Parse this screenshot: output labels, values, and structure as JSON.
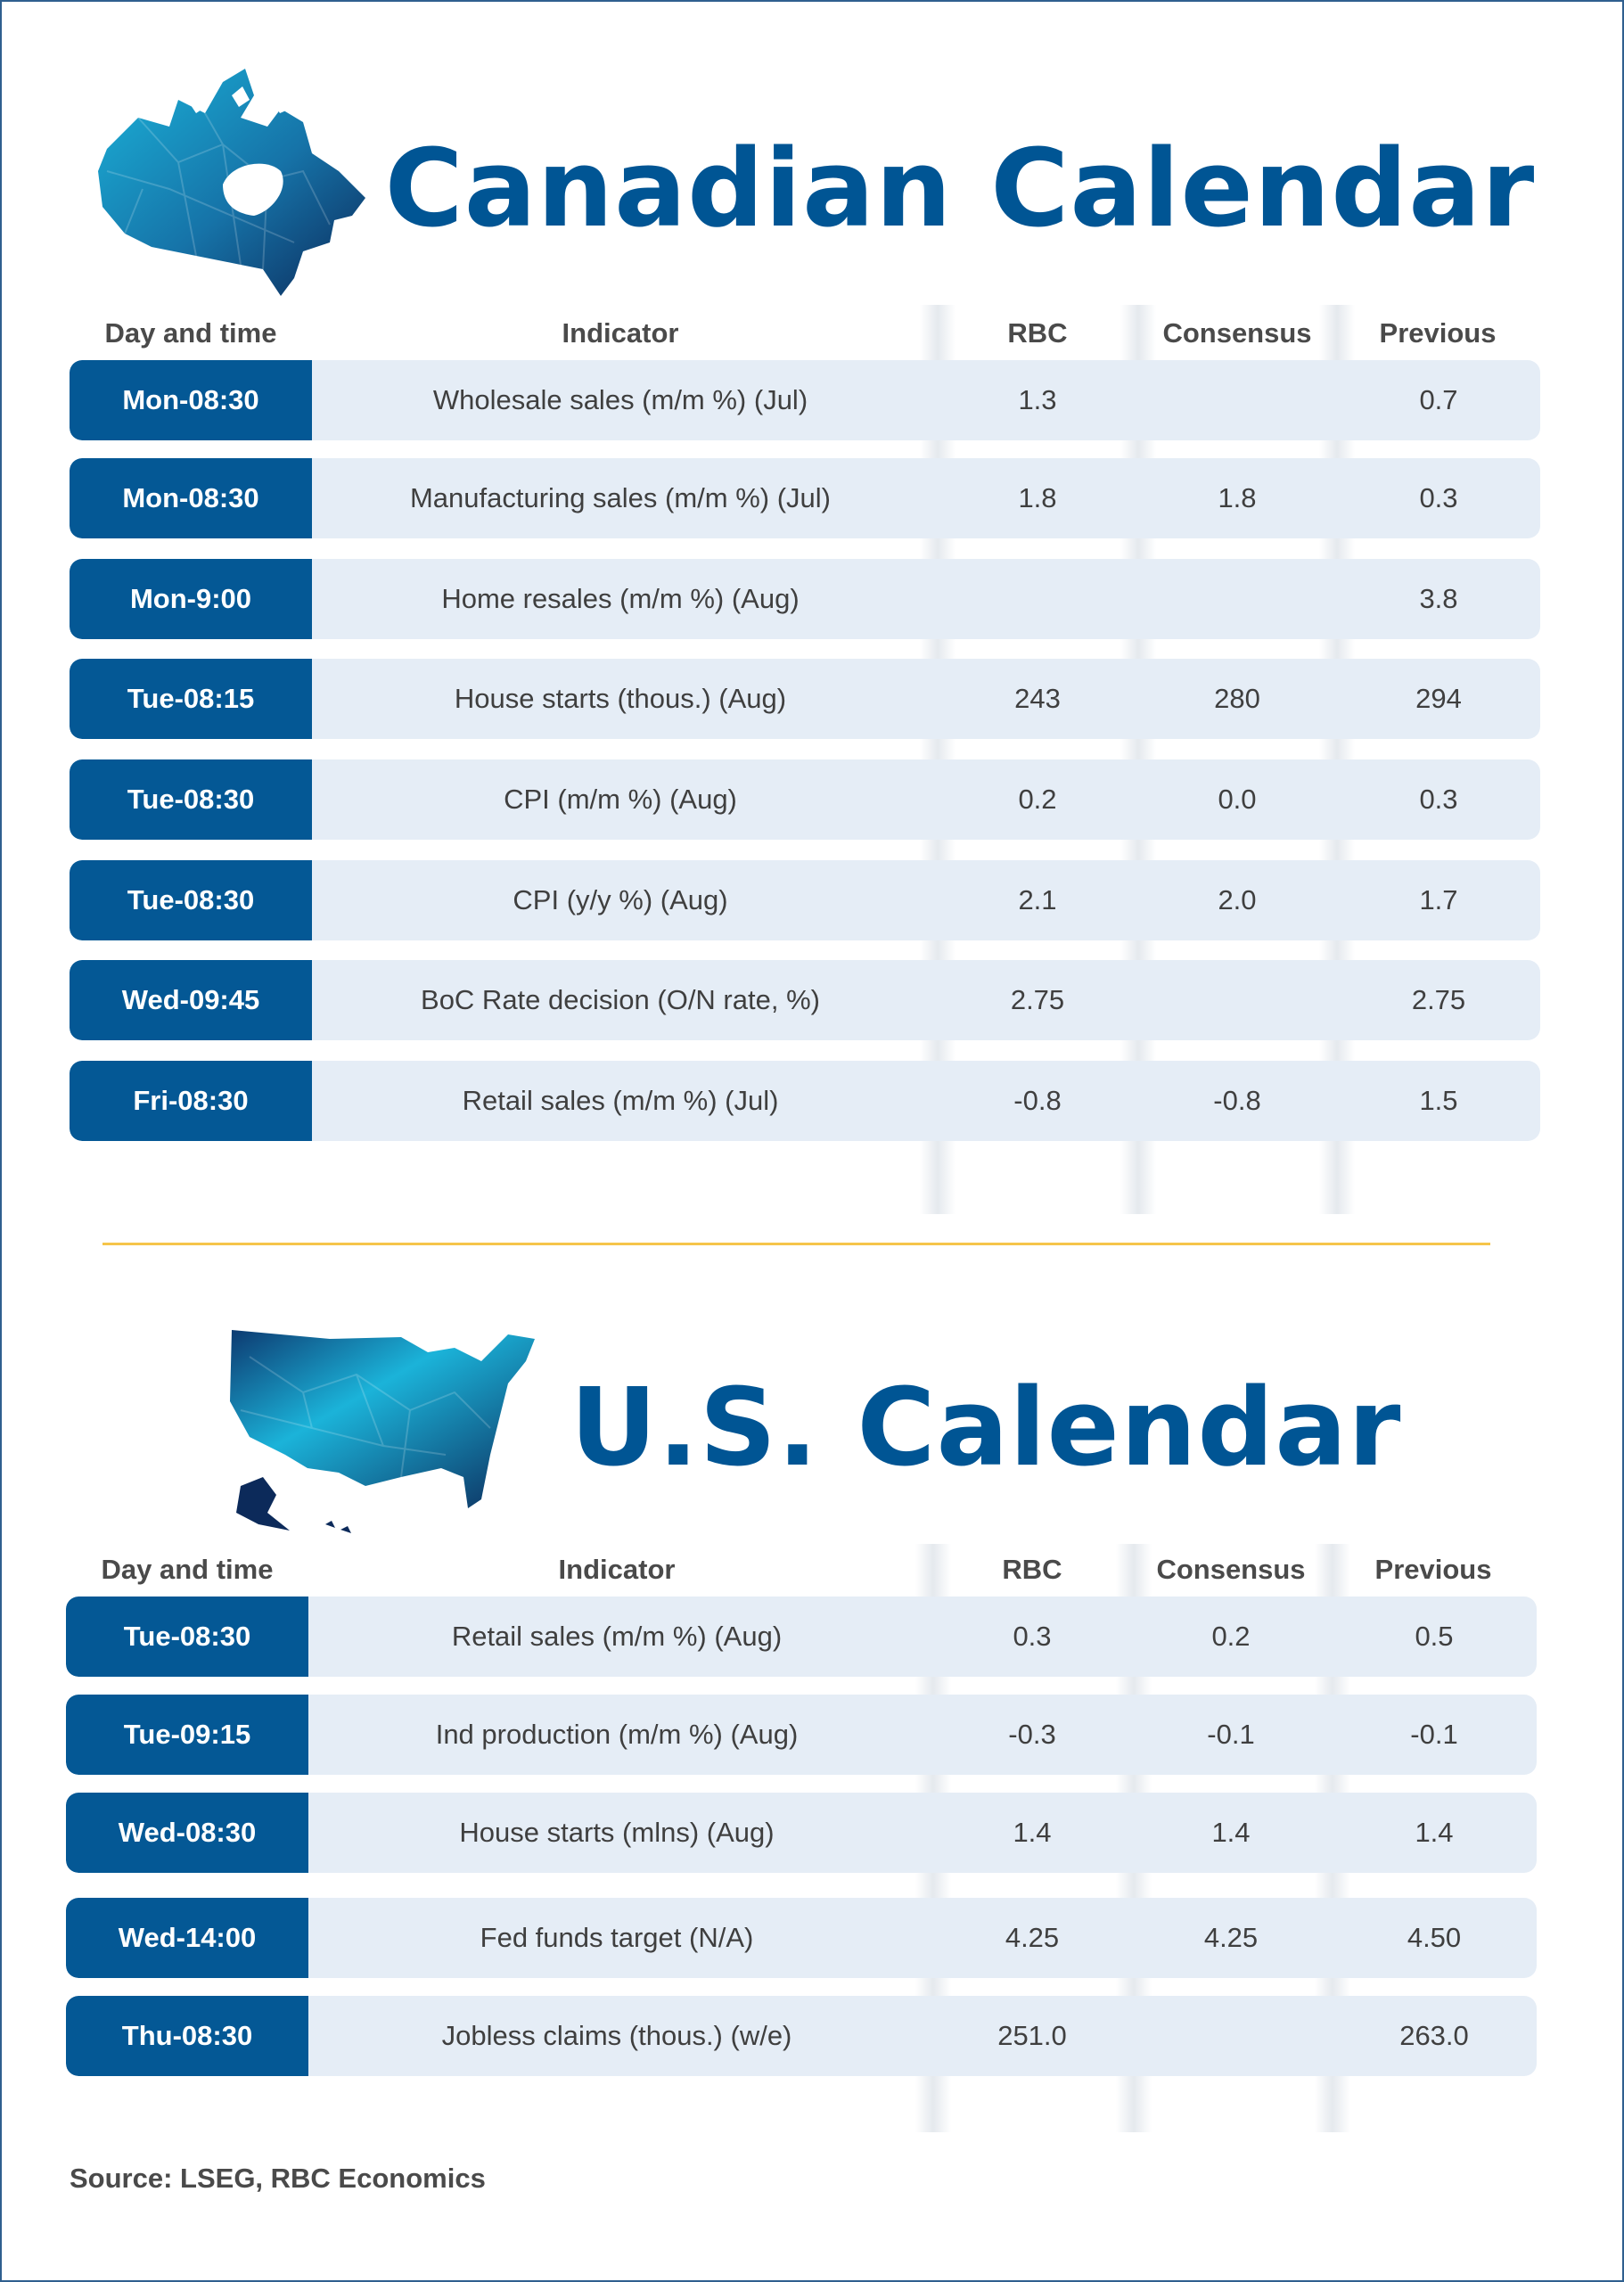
{
  "columns": {
    "day": "Day and time",
    "indicator": "Indicator",
    "rbc": "RBC",
    "consensus": "Consensus",
    "previous": "Previous"
  },
  "canadian": {
    "title": "Canadian Calendar",
    "map_icon": "canada-map-icon",
    "rows": [
      {
        "day": "Mon-08:30",
        "indicator": "Wholesale sales (m/m %) (Jul)",
        "rbc": "1.3",
        "consensus": "",
        "previous": "0.7"
      },
      {
        "day": "Mon-08:30",
        "indicator": "Manufacturing sales (m/m %) (Jul)",
        "rbc": "1.8",
        "consensus": "1.8",
        "previous": "0.3"
      },
      {
        "day": "Mon-9:00",
        "indicator": "Home resales (m/m %) (Aug)",
        "rbc": "",
        "consensus": "",
        "previous": "3.8"
      },
      {
        "day": "Tue-08:15",
        "indicator": "House starts (thous.) (Aug)",
        "rbc": "243",
        "consensus": "280",
        "previous": "294"
      },
      {
        "day": "Tue-08:30",
        "indicator": "CPI (m/m %) (Aug)",
        "rbc": "0.2",
        "consensus": "0.0",
        "previous": "0.3"
      },
      {
        "day": "Tue-08:30",
        "indicator": "CPI (y/y %) (Aug)",
        "rbc": "2.1",
        "consensus": "2.0",
        "previous": "1.7"
      },
      {
        "day": "Wed-09:45",
        "indicator": "BoC Rate decision (O/N rate, %)",
        "rbc": "2.75",
        "consensus": "",
        "previous": "2.75"
      },
      {
        "day": "Fri-08:30",
        "indicator": "Retail sales (m/m %) (Jul)",
        "rbc": "-0.8",
        "consensus": "-0.8",
        "previous": "1.5"
      }
    ]
  },
  "us": {
    "title": "U.S. Calendar",
    "map_icon": "usa-map-icon",
    "rows": [
      {
        "day": "Tue-08:30",
        "indicator": "Retail sales (m/m %) (Aug)",
        "rbc": "0.3",
        "consensus": "0.2",
        "previous": "0.5"
      },
      {
        "day": "Tue-09:15",
        "indicator": "Ind production (m/m %) (Aug)",
        "rbc": "-0.3",
        "consensus": "-0.1",
        "previous": "-0.1"
      },
      {
        "day": "Wed-08:30",
        "indicator": "House starts (mlns) (Aug)",
        "rbc": "1.4",
        "consensus": "1.4",
        "previous": "1.4"
      },
      {
        "day": "Wed-14:00",
        "indicator": "Fed funds target (N/A)",
        "rbc": "4.25",
        "consensus": "4.25",
        "previous": "4.50"
      },
      {
        "day": "Thu-08:30",
        "indicator": "Jobless claims (thous.) (w/e)",
        "rbc": "251.0",
        "consensus": "",
        "previous": "263.0"
      }
    ]
  },
  "source": "Source: LSEG,  RBC Economics",
  "colors": {
    "brand_blue": "#005594",
    "day_cell": "#045895",
    "row_bg": "#e5edf6",
    "divider": "#f6c54a"
  }
}
